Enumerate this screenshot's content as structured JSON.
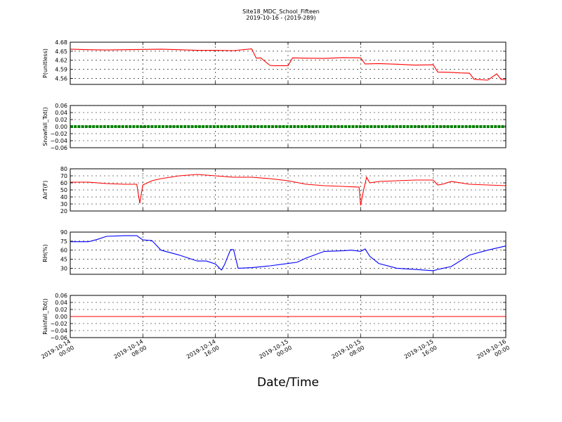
{
  "figure": {
    "title": "Site18_MDC_School_Fifteen",
    "subtitle": "2019-10-16 - (2019-289)",
    "xlabel": "Date/Time"
  },
  "chart_data": [
    {
      "type": "line",
      "ylabel": "P(unitless)",
      "xlim": [
        "2019-10-14 00:00",
        "2019-10-16 00:00"
      ],
      "ylim": [
        4.54,
        4.68
      ],
      "yticks": [
        "4.56",
        "4.59",
        "4.62",
        "4.65",
        "4.68"
      ],
      "color": "#ff0000",
      "grid": true,
      "x": [
        "2019-10-14 00:00",
        "2019-10-14 02:00",
        "2019-10-14 04:00",
        "2019-10-14 06:00",
        "2019-10-14 08:00",
        "2019-10-14 10:00",
        "2019-10-14 12:00",
        "2019-10-14 14:00",
        "2019-10-14 16:00",
        "2019-10-14 18:00",
        "2019-10-14 20:00",
        "2019-10-14 20:30",
        "2019-10-14 21:00",
        "2019-10-14 22:00",
        "2019-10-14 22:30",
        "2019-10-15 00:00",
        "2019-10-15 00:30",
        "2019-10-15 02:00",
        "2019-10-15 04:00",
        "2019-10-15 06:00",
        "2019-10-15 08:00",
        "2019-10-15 08:30",
        "2019-10-15 10:00",
        "2019-10-15 12:00",
        "2019-10-15 14:00",
        "2019-10-15 16:00",
        "2019-10-15 16:30",
        "2019-10-15 18:00",
        "2019-10-15 19:00",
        "2019-10-15 20:00",
        "2019-10-15 20:30",
        "2019-10-15 22:00",
        "2019-10-15 23:00",
        "2019-10-15 23:30",
        "2019-10-16 00:00"
      ],
      "values": [
        4.657,
        4.655,
        4.654,
        4.655,
        4.656,
        4.657,
        4.655,
        4.653,
        4.653,
        4.652,
        4.658,
        4.627,
        4.628,
        4.603,
        4.602,
        4.602,
        4.628,
        4.627,
        4.626,
        4.629,
        4.628,
        4.608,
        4.609,
        4.607,
        4.604,
        4.605,
        4.581,
        4.58,
        4.578,
        4.577,
        4.557,
        4.554,
        4.575,
        4.556,
        4.556
      ]
    },
    {
      "type": "line",
      "ylabel": "Snowfall_Tot()",
      "xlim": [
        "2019-10-14 00:00",
        "2019-10-16 00:00"
      ],
      "ylim": [
        -0.06,
        0.06
      ],
      "yticks": [
        "−0.06",
        "−0.04",
        "−0.02",
        "0.00",
        "0.02",
        "0.04",
        "0.06"
      ],
      "color": "#008000",
      "marker": "dot",
      "grid": true,
      "x": [
        "2019-10-14 00:00",
        "2019-10-16 00:00"
      ],
      "values": [
        0.0,
        0.0
      ]
    },
    {
      "type": "line",
      "ylabel": "AirT(F)",
      "xlim": [
        "2019-10-14 00:00",
        "2019-10-16 00:00"
      ],
      "ylim": [
        20,
        80
      ],
      "yticks": [
        "20",
        "30",
        "40",
        "50",
        "60",
        "70",
        "80"
      ],
      "color": "#ff0000",
      "grid": true,
      "x": [
        "2019-10-14 00:00",
        "2019-10-14 02:00",
        "2019-10-14 04:00",
        "2019-10-14 06:00",
        "2019-10-14 07:20",
        "2019-10-14 07:40",
        "2019-10-14 08:00",
        "2019-10-14 09:00",
        "2019-10-14 10:00",
        "2019-10-14 12:00",
        "2019-10-14 14:00",
        "2019-10-14 16:00",
        "2019-10-14 18:00",
        "2019-10-14 20:00",
        "2019-10-14 22:00",
        "2019-10-15 00:00",
        "2019-10-15 02:00",
        "2019-10-15 04:00",
        "2019-10-15 06:00",
        "2019-10-15 07:50",
        "2019-10-15 08:00",
        "2019-10-15 08:20",
        "2019-10-15 08:40",
        "2019-10-15 09:00",
        "2019-10-15 10:00",
        "2019-10-15 12:00",
        "2019-10-15 14:00",
        "2019-10-15 16:00",
        "2019-10-15 16:30",
        "2019-10-15 17:00",
        "2019-10-15 18:00",
        "2019-10-15 20:00",
        "2019-10-15 22:00",
        "2019-10-16 00:00"
      ],
      "values": [
        61,
        61,
        59,
        58,
        58,
        31,
        57,
        63,
        66,
        70,
        72,
        70,
        68,
        68,
        66,
        63,
        58,
        56,
        55,
        54,
        28,
        50,
        68,
        60,
        62,
        63,
        64,
        64,
        57,
        58,
        62,
        58,
        57,
        56
      ]
    },
    {
      "type": "line",
      "ylabel": "RH(%)",
      "xlim": [
        "2019-10-14 00:00",
        "2019-10-16 00:00"
      ],
      "ylim": [
        20,
        90
      ],
      "yticks": [
        "30",
        "45",
        "60",
        "75",
        "90"
      ],
      "color": "#0000ff",
      "grid": true,
      "x": [
        "2019-10-14 00:00",
        "2019-10-14 02:00",
        "2019-10-14 03:00",
        "2019-10-14 04:00",
        "2019-10-14 06:00",
        "2019-10-14 07:20",
        "2019-10-14 08:00",
        "2019-10-14 09:00",
        "2019-10-14 10:00",
        "2019-10-14 12:00",
        "2019-10-14 14:00",
        "2019-10-14 15:00",
        "2019-10-14 16:00",
        "2019-10-14 16:40",
        "2019-10-14 17:00",
        "2019-10-14 17:40",
        "2019-10-14 18:00",
        "2019-10-14 18:30",
        "2019-10-14 20:00",
        "2019-10-14 22:00",
        "2019-10-15 00:00",
        "2019-10-15 01:00",
        "2019-10-15 02:00",
        "2019-10-15 04:00",
        "2019-10-15 06:00",
        "2019-10-15 07:00",
        "2019-10-15 08:00",
        "2019-10-15 08:30",
        "2019-10-15 09:00",
        "2019-10-15 10:00",
        "2019-10-15 12:00",
        "2019-10-15 14:00",
        "2019-10-15 16:00",
        "2019-10-15 16:30",
        "2019-10-15 18:00",
        "2019-10-15 20:00",
        "2019-10-15 22:00",
        "2019-10-16 00:00"
      ],
      "values": [
        74,
        74,
        78,
        83,
        84,
        84,
        77,
        76,
        60,
        52,
        42,
        42,
        37,
        27,
        36,
        61,
        61,
        30,
        31,
        34,
        38,
        40,
        47,
        58,
        59,
        60,
        58,
        62,
        50,
        38,
        30,
        28,
        26,
        28,
        33,
        52,
        60,
        67
      ]
    },
    {
      "type": "line",
      "ylabel": "Rainfall_Tot()",
      "xlim": [
        "2019-10-14 00:00",
        "2019-10-16 00:00"
      ],
      "ylim": [
        -0.06,
        0.06
      ],
      "yticks": [
        "−0.06",
        "−0.04",
        "−0.02",
        "0.00",
        "0.02",
        "0.04",
        "0.06"
      ],
      "color": "#ff0000",
      "grid": true,
      "x": [
        "2019-10-14 00:00",
        "2019-10-16 00:00"
      ],
      "values": [
        0.0,
        0.0
      ]
    }
  ],
  "xticks": [
    {
      "line1": "2019-10-14",
      "line2": "00:00"
    },
    {
      "line1": "2019-10-14",
      "line2": "08:00"
    },
    {
      "line1": "2019-10-14",
      "line2": "16:00"
    },
    {
      "line1": "2019-10-15",
      "line2": "00:00"
    },
    {
      "line1": "2019-10-15",
      "line2": "08:00"
    },
    {
      "line1": "2019-10-15",
      "line2": "16:00"
    },
    {
      "line1": "2019-10-16",
      "line2": "00:00"
    }
  ]
}
